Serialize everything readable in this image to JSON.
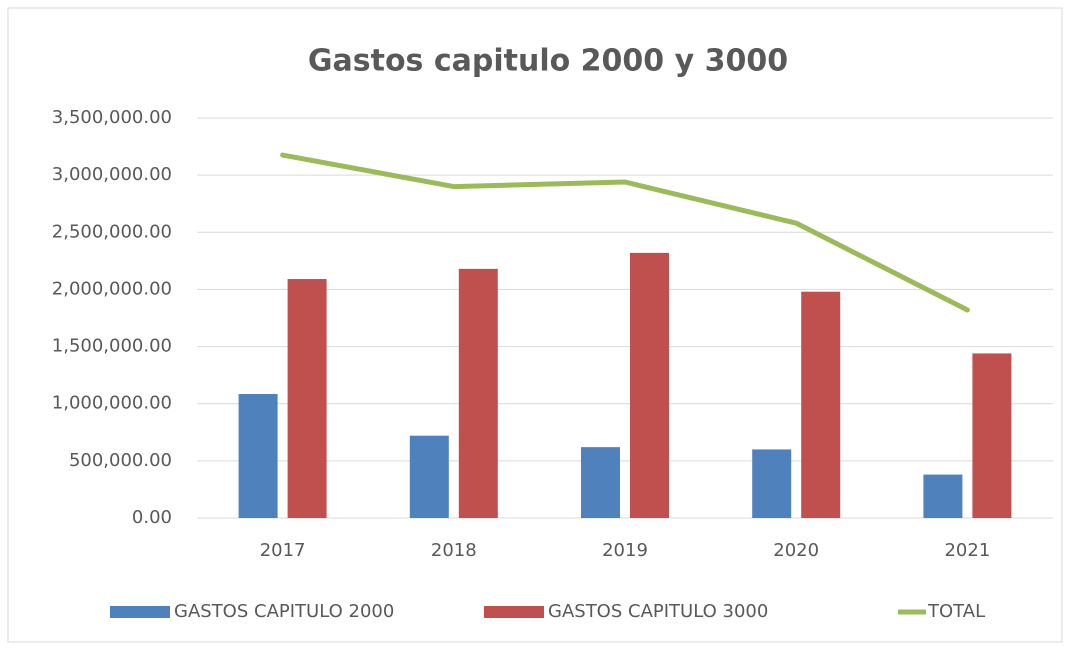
{
  "chart_data": {
    "type": "bar",
    "title": "Gastos capitulo 2000 y 3000",
    "categories": [
      "2017",
      "2018",
      "2019",
      "2020",
      "2021"
    ],
    "series": [
      {
        "name": "GASTOS CAPITULO 2000",
        "color": "#4f81bd",
        "values": [
          1085000,
          720000,
          620000,
          600000,
          380000
        ]
      },
      {
        "name": "GASTOS CAPITULO 3000",
        "color": "#c0504d",
        "values": [
          2091000,
          2180000,
          2320000,
          1980000,
          1440000
        ]
      },
      {
        "name": "TOTAL",
        "color": "#9bbb59",
        "type": "line",
        "values": [
          3176000,
          2900000,
          2940000,
          2580000,
          1820000
        ]
      }
    ],
    "ylim": [
      0,
      3500000
    ],
    "yticks": [
      {
        "value": 0,
        "label": "0.00"
      },
      {
        "value": 500000,
        "label": "500,000.00"
      },
      {
        "value": 1000000,
        "label": "1,000,000.00"
      },
      {
        "value": 1500000,
        "label": "1,500,000.00"
      },
      {
        "value": 2000000,
        "label": "2,000,000.00"
      },
      {
        "value": 2500000,
        "label": "2,500,000.00"
      },
      {
        "value": 3000000,
        "label": "3,000,000.00"
      },
      {
        "value": 3500000,
        "label": "3,500,000.00"
      }
    ],
    "grid": true,
    "legend": "bottom"
  }
}
